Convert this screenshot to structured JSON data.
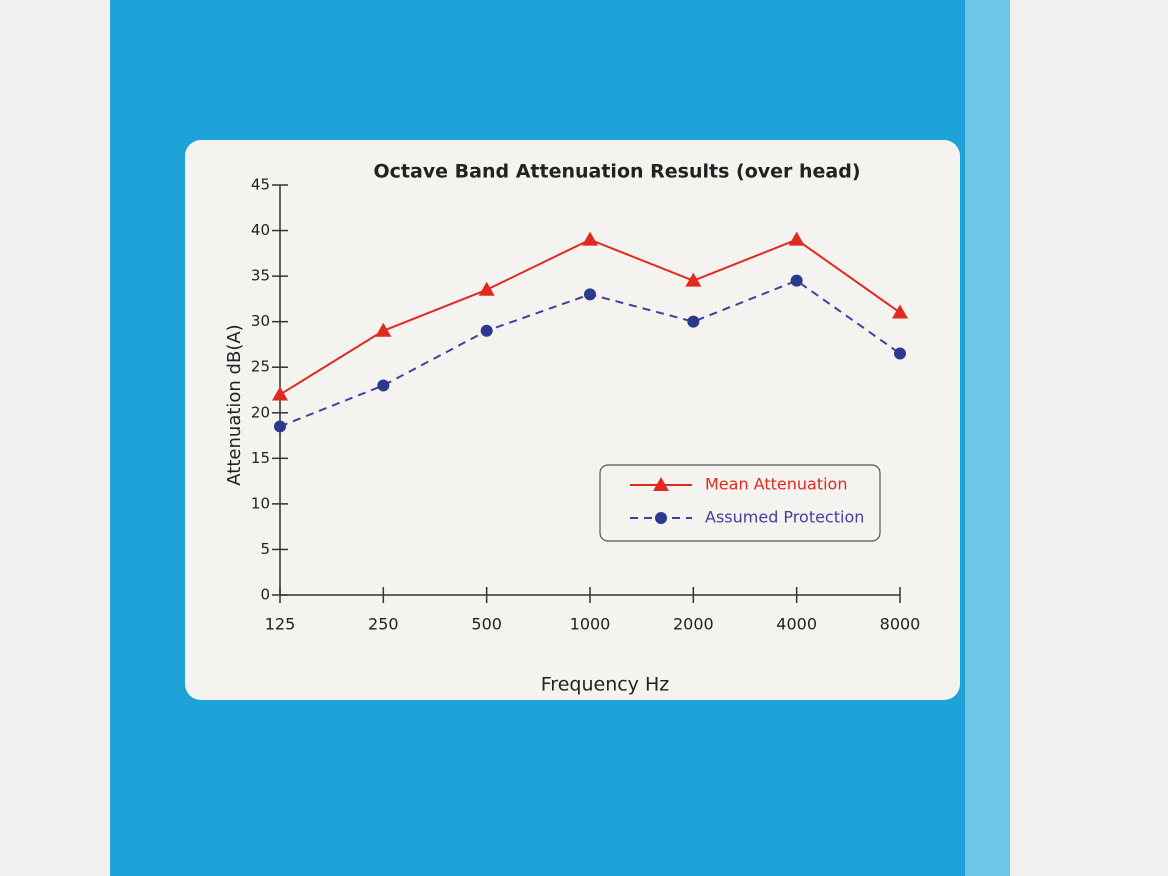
{
  "chart_data": {
    "type": "line",
    "title": "Octave Band Attenuation Results (over head)",
    "x_label": "Frequency Hz",
    "y_label": "Attenuation dB(A)",
    "categories": [
      "125",
      "250",
      "500",
      "1000",
      "2000",
      "4000",
      "8000"
    ],
    "series": [
      {
        "name": "Mean Attenuation",
        "color": "#e02a1f",
        "dash": false,
        "marker": "triangle",
        "values": [
          22,
          29,
          33.5,
          39,
          34.5,
          39,
          31
        ]
      },
      {
        "name": "Assumed Protection",
        "color": "#4b3b9c",
        "dash": true,
        "marker": "circle",
        "values": [
          18.5,
          23,
          29,
          33,
          30,
          34.5,
          26.5
        ]
      }
    ],
    "ylim": [
      0,
      45
    ],
    "yticks": [
      0,
      5,
      10,
      15,
      20,
      25,
      30,
      35,
      40,
      45
    ],
    "grid": false,
    "legend": "lower right"
  }
}
